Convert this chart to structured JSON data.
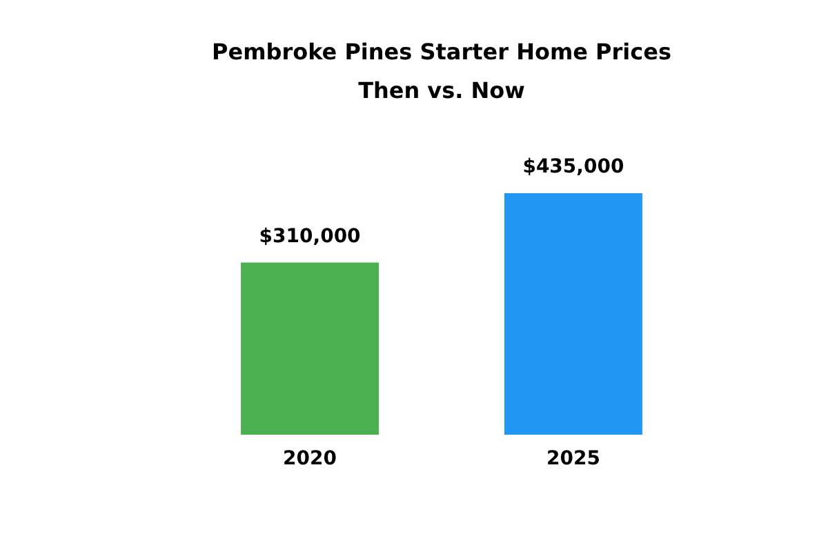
{
  "chart_data": {
    "type": "bar",
    "title": "Pembroke Pines Starter Home Prices",
    "subtitle": "Then vs. Now",
    "categories": [
      "2020",
      "2025"
    ],
    "values": [
      310000,
      435000
    ],
    "colors": [
      "#4caf50",
      "#2196f3"
    ],
    "value_labels": [
      "$310,000",
      "$435,000"
    ],
    "grid": false,
    "legend": false
  }
}
